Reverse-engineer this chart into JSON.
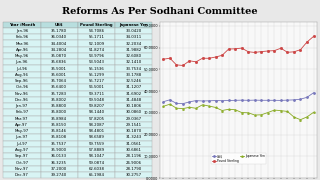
{
  "title": "Reforms As Per Sodhani Committee",
  "title_fontsize": 7,
  "bg_color": "#e8e8e8",
  "table_bg": "#d8f4f4",
  "table_header_bg": "#b8dede",
  "table_cols": [
    "Year /Month",
    "US$",
    "Pound Sterling",
    "Japanese Yen"
  ],
  "table_data": [
    [
      "Jan-96",
      "35.1780",
      "54.7086",
      "33.0420"
    ],
    [
      "Feb-96",
      "36.0340",
      "55.1711",
      "34.0311"
    ],
    [
      "Mar-96",
      "34.4004",
      "52.1009",
      "32.2034"
    ],
    [
      "Apr-96",
      "34.2804",
      "51.8274",
      "31.9882"
    ],
    [
      "May-96",
      "35.0870",
      "53.9796",
      "32.6080"
    ],
    [
      "Jun-96",
      "35.6836",
      "53.5043",
      "32.1410"
    ],
    [
      "Jul-96",
      "35.5001",
      "55.1536",
      "33.7534"
    ],
    [
      "Aug-96",
      "35.6001",
      "55.1299",
      "33.1788"
    ],
    [
      "Sep-96",
      "35.7064",
      "55.7217",
      "32.5246"
    ],
    [
      "Oct-96",
      "35.6400",
      "56.5001",
      "31.1207"
    ],
    [
      "Nov-96",
      "35.7283",
      "59.3711",
      "31.6902"
    ],
    [
      "Dec-96",
      "35.8002",
      "59.5048",
      "31.4848"
    ],
    [
      "Jan-97",
      "35.8800",
      "59.8207",
      "30.1806"
    ],
    [
      "Feb-97",
      "35.8000",
      "58.1440",
      "30.0860"
    ],
    [
      "Mar-97",
      "35.8984",
      "57.8205",
      "29.0367"
    ],
    [
      "Apr-97",
      "35.8150",
      "58.2087",
      "29.1541"
    ],
    [
      "May-97",
      "35.8146",
      "58.4801",
      "30.1870"
    ],
    [
      "Jun-97",
      "35.8108",
      "58.6589",
      "31.3243"
    ],
    [
      "Jul-97",
      "35.7537",
      "59.7559",
      "31.0561"
    ],
    [
      "Aug-97",
      "35.9000",
      "57.8889",
      "30.6861"
    ],
    [
      "Sep-97",
      "36.0133",
      "58.1047",
      "28.1196"
    ],
    [
      "Oct-97",
      "36.3235",
      "59.0874",
      "26.9006"
    ],
    [
      "Nov-97",
      "37.2000",
      "62.6038",
      "28.1790"
    ],
    [
      "Dec-97",
      "39.2740",
      "65.1984",
      "30.2757"
    ]
  ],
  "months": [
    "Jan-96",
    "Feb-96",
    "Mar-96",
    "Apr-96",
    "May-96",
    "Jun-96",
    "Jul-96",
    "Aug-96",
    "Sep-96",
    "Oct-96",
    "Nov-96",
    "Dec-96",
    "Jan-97",
    "Feb-97",
    "Mar-97",
    "Apr-97",
    "May-97",
    "Jun-97",
    "Jul-97",
    "Aug-97",
    "Sep-97",
    "Oct-97",
    "Nov-97",
    "Dec-97"
  ],
  "usd": [
    35.178,
    36.034,
    34.4,
    34.28,
    35.087,
    35.684,
    35.5,
    35.6,
    35.706,
    35.64,
    35.728,
    35.8,
    35.88,
    35.8,
    35.898,
    35.815,
    35.815,
    35.811,
    35.754,
    35.9,
    36.013,
    36.324,
    37.2,
    39.274
  ],
  "pound": [
    54.709,
    55.171,
    52.101,
    51.827,
    53.98,
    53.504,
    55.154,
    55.13,
    55.722,
    56.5,
    59.371,
    59.505,
    59.821,
    58.144,
    57.821,
    58.209,
    58.48,
    58.659,
    59.756,
    57.889,
    58.105,
    59.087,
    62.604,
    65.198
  ],
  "yen": [
    33.042,
    34.031,
    32.203,
    31.988,
    32.608,
    32.141,
    33.753,
    33.179,
    32.525,
    31.121,
    31.69,
    31.485,
    30.181,
    30.086,
    29.037,
    29.154,
    30.187,
    31.324,
    31.056,
    30.686,
    28.12,
    26.901,
    28.179,
    30.276
  ],
  "usd_color": "#7777bb",
  "pound_color": "#cc4444",
  "yen_color": "#88aa22",
  "chart_bg": "#f8f8f8",
  "ytick_labels": [
    "0.0000",
    "10.0000",
    "20.0000",
    "30.0000",
    "40.0000",
    "50.0000",
    "60.0000",
    "70.0000"
  ],
  "ytick_vals": [
    0,
    10,
    20,
    30,
    40,
    50,
    60,
    70
  ],
  "ylim_min": 0,
  "ylim_max": 72,
  "legend_entries": [
    "US$",
    "Pound Sterling",
    "Japanese Yen"
  ]
}
